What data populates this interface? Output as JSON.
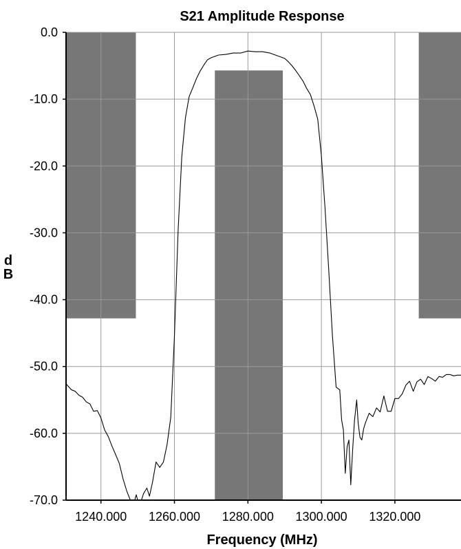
{
  "chart_data": {
    "type": "line",
    "title": "S21  Amplitude Response",
    "xlabel": "Frequency (MHz)",
    "ylabel": "dB",
    "xlim": [
      1230.5,
      1338
    ],
    "ylim": [
      -70,
      0
    ],
    "grid": true,
    "xticks": [
      1240,
      1260,
      1280,
      1300,
      1320
    ],
    "xtick_labels": [
      "1240.000",
      "1260.000",
      "1280.000",
      "1300.000",
      "1320.000"
    ],
    "yticks": [
      0,
      -10,
      -20,
      -30,
      -40,
      -50,
      -60,
      -70
    ],
    "ytick_labels": [
      "0.0",
      "-10.0",
      "-20.0",
      "-30.0",
      "-40.0",
      "-50.0",
      "-60.0",
      "-70.0"
    ],
    "mask_color": "#777777",
    "line_color": "#000000",
    "masks": [
      {
        "x0": 1230.5,
        "x1": 1249.5,
        "y_top": 0,
        "y_bottom": -42.8
      },
      {
        "x0": 1271,
        "x1": 1289.5,
        "y_top": -5.7,
        "y_bottom": -70
      },
      {
        "x0": 1326.5,
        "x1": 1338,
        "y_top": 0,
        "y_bottom": -42.8
      }
    ],
    "series": [
      {
        "x": [
          1230.5,
          1232,
          1233,
          1234,
          1235,
          1236,
          1237,
          1238,
          1239,
          1240,
          1241,
          1242,
          1243,
          1244,
          1245,
          1246,
          1247,
          1248,
          1248.6,
          1249.2,
          1249.6,
          1250,
          1251,
          1251.6,
          1252.5,
          1253.2,
          1254,
          1255,
          1256,
          1257,
          1258,
          1259,
          1260,
          1261,
          1262,
          1263,
          1264,
          1265,
          1266,
          1267,
          1268,
          1269,
          1270,
          1272,
          1274,
          1276,
          1278,
          1280,
          1282,
          1284,
          1286,
          1288,
          1290,
          1291,
          1292,
          1293,
          1294,
          1295,
          1296,
          1297,
          1298,
          1299,
          1300,
          1301,
          1302,
          1303,
          1304,
          1305,
          1305.5,
          1306,
          1306.5,
          1307,
          1307.5,
          1308,
          1308.5,
          1309,
          1309.6,
          1310,
          1310.5,
          1311,
          1311.5,
          1312,
          1313,
          1314,
          1315,
          1316,
          1317,
          1318,
          1319,
          1320,
          1321,
          1322,
          1323,
          1324,
          1325,
          1326,
          1327,
          1328,
          1329,
          1330,
          1331,
          1332,
          1333,
          1334,
          1335,
          1336,
          1337,
          1338
        ],
        "y": [
          -52.6,
          -53.5,
          -53.7,
          -54.3,
          -54.6,
          -55.3,
          -55.6,
          -56.7,
          -56.6,
          -57.7,
          -59.5,
          -60.5,
          -61.9,
          -63.2,
          -64.5,
          -66.8,
          -68.6,
          -70.0,
          -70.2,
          -70.5,
          -69.2,
          -70.0,
          -70.4,
          -69.0,
          -68.2,
          -69.4,
          -67.4,
          -64.3,
          -65.1,
          -64.3,
          -61.7,
          -57.6,
          -45.5,
          -29.6,
          -18.6,
          -12.8,
          -9.6,
          -8.3,
          -6.9,
          -5.8,
          -4.9,
          -4.1,
          -3.8,
          -3.4,
          -3.3,
          -3.1,
          -3.1,
          -2.8,
          -2.9,
          -2.9,
          -3.1,
          -3.5,
          -3.9,
          -4.4,
          -5.0,
          -5.7,
          -6.5,
          -7.3,
          -8.4,
          -9.3,
          -11.0,
          -13.0,
          -18.5,
          -26.3,
          -35.6,
          -45.3,
          -53.1,
          -53.5,
          -58.0,
          -59.5,
          -66.0,
          -62.0,
          -61.0,
          -67.7,
          -62.5,
          -58.1,
          -55.0,
          -58.4,
          -60.6,
          -61.0,
          -59.3,
          -58.4,
          -57.0,
          -57.5,
          -56.2,
          -56.8,
          -54.4,
          -56.7,
          -56.7,
          -54.8,
          -54.8,
          -54.1,
          -52.8,
          -52.2,
          -53.7,
          -52.3,
          -51.9,
          -52.7,
          -51.5,
          -51.8,
          -52.2,
          -51.5,
          -51.6,
          -51.2,
          -51.2,
          -51.4,
          -51.3,
          -51.3
        ]
      }
    ]
  }
}
